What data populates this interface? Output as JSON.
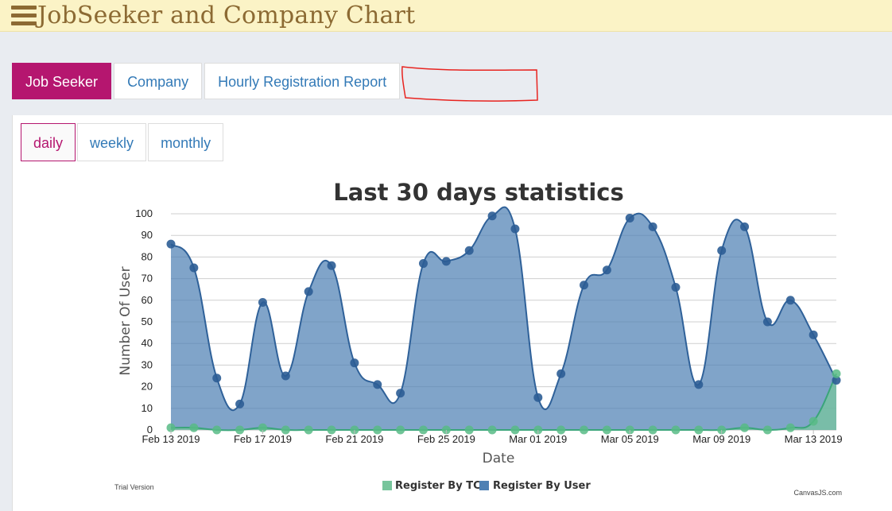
{
  "app": {
    "title": "JobSeeker and Company Chart"
  },
  "tabs": [
    {
      "label": "Job Seeker",
      "active": true
    },
    {
      "label": "Company",
      "active": false
    },
    {
      "label": "Hourly Registration Report",
      "active": false
    }
  ],
  "subtabs": [
    {
      "label": "daily",
      "active": true
    },
    {
      "label": "weekly",
      "active": false
    },
    {
      "label": "monthly",
      "active": false
    }
  ],
  "colors": {
    "accent": "#b5166f",
    "link": "#337ab7",
    "title_brown": "#8c6a33",
    "series_user": "#4f81b4",
    "series_tc": "#77c59c"
  },
  "chart_data": {
    "type": "area",
    "title": "Last 30 days statistics",
    "xlabel": "Date",
    "ylabel": "Number Of User",
    "ylim": [
      0,
      100
    ],
    "yticks": [
      0,
      10,
      20,
      30,
      40,
      50,
      60,
      70,
      80,
      90,
      100
    ],
    "grid": true,
    "legend_position": "bottom",
    "x": [
      "2019-02-13",
      "2019-02-14",
      "2019-02-15",
      "2019-02-16",
      "2019-02-17",
      "2019-02-18",
      "2019-02-19",
      "2019-02-20",
      "2019-02-21",
      "2019-02-22",
      "2019-02-23",
      "2019-02-24",
      "2019-02-25",
      "2019-02-26",
      "2019-02-27",
      "2019-02-28",
      "2019-03-01",
      "2019-03-02",
      "2019-03-03",
      "2019-03-04",
      "2019-03-05",
      "2019-03-06",
      "2019-03-07",
      "2019-03-08",
      "2019-03-09",
      "2019-03-10",
      "2019-03-11",
      "2019-03-12",
      "2019-03-13",
      "2019-03-14"
    ],
    "xtick_labels": [
      {
        "date": "2019-02-13",
        "label": "Feb 13 2019"
      },
      {
        "date": "2019-02-17",
        "label": "Feb 17 2019"
      },
      {
        "date": "2019-02-21",
        "label": "Feb 21 2019"
      },
      {
        "date": "2019-02-25",
        "label": "Feb 25 2019"
      },
      {
        "date": "2019-03-01",
        "label": "Mar 01 2019"
      },
      {
        "date": "2019-03-05",
        "label": "Mar 05 2019"
      },
      {
        "date": "2019-03-09",
        "label": "Mar 09 2019"
      },
      {
        "date": "2019-03-13",
        "label": "Mar 13 2019"
      }
    ],
    "series": [
      {
        "name": "Register By User",
        "color": "#4f81b4",
        "values": [
          86,
          75,
          24,
          12,
          59,
          25,
          64,
          76,
          31,
          21,
          17,
          77,
          78,
          83,
          99,
          93,
          15,
          26,
          67,
          74,
          98,
          94,
          66,
          21,
          83,
          94,
          50,
          60,
          44,
          23
        ]
      },
      {
        "name": "Register By TC",
        "color": "#77c59c",
        "values": [
          1,
          1,
          0,
          0,
          1,
          0,
          0,
          0,
          0,
          0,
          0,
          0,
          0,
          0,
          0,
          0,
          0,
          0,
          0,
          0,
          0,
          0,
          0,
          0,
          0,
          1,
          0,
          1,
          4,
          26
        ]
      }
    ],
    "legend": [
      "Register By TC",
      "Register By User"
    ],
    "footer_left": "Trial Version",
    "footer_right": "CanvasJS.com"
  }
}
